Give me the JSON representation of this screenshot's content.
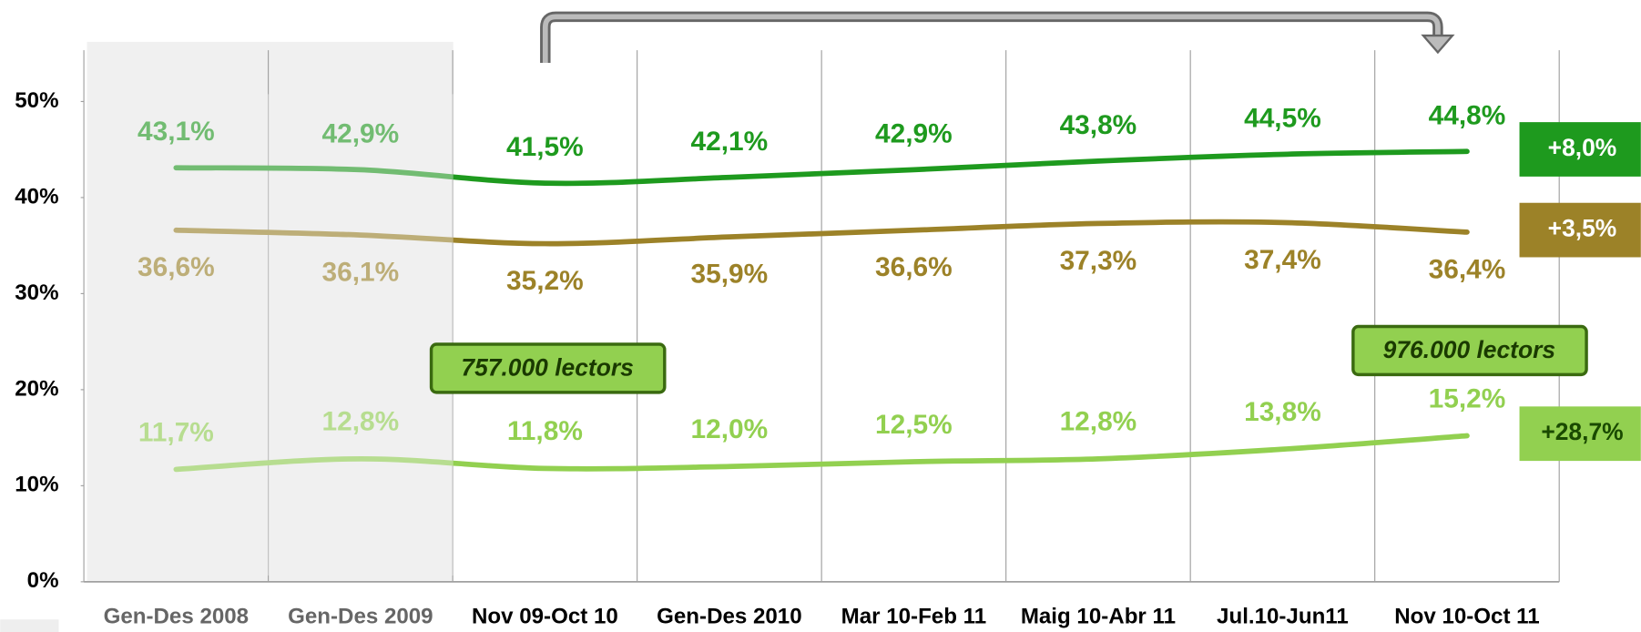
{
  "chart_data": {
    "type": "line",
    "categories": [
      "Gen-Des 2008",
      "Gen-Des 2009",
      "Nov 09-Oct 10",
      "Gen-Des 2010",
      "Mar 10-Feb 11",
      "Maig 10-Abr 11",
      "Jul.10-Jun11",
      "Nov 10-Oct 11"
    ],
    "series": [
      {
        "name": "top",
        "color": "#1e9a1e",
        "values": [
          43.1,
          42.9,
          41.5,
          42.1,
          42.9,
          43.8,
          44.5,
          44.8
        ],
        "value_labels": [
          "43,1%",
          "42,9%",
          "41,5%",
          "42,1%",
          "42,9%",
          "43,8%",
          "44,5%",
          "44,8%"
        ],
        "change": "+8,0%"
      },
      {
        "name": "middle",
        "color": "#9c8228",
        "values": [
          36.6,
          36.1,
          35.2,
          35.9,
          36.6,
          37.3,
          37.4,
          36.4
        ],
        "value_labels": [
          "36,6%",
          "36,1%",
          "35,2%",
          "35,9%",
          "36,6%",
          "37,3%",
          "37,4%",
          "36,4%"
        ],
        "change": "+3,5%"
      },
      {
        "name": "bottom",
        "color": "#92d050",
        "values": [
          11.7,
          12.8,
          11.8,
          12.0,
          12.5,
          12.8,
          13.8,
          15.2
        ],
        "value_labels": [
          "11,7%",
          "12,8%",
          "11,8%",
          "12,0%",
          "12,5%",
          "12,8%",
          "13,8%",
          "15,2%"
        ],
        "change": "+28,7%"
      }
    ],
    "ylim": [
      0,
      50
    ],
    "yticks": [
      {
        "value": 0,
        "label": "0%"
      },
      {
        "value": 10,
        "label": "10%"
      },
      {
        "value": 20,
        "label": "20%"
      },
      {
        "value": 30,
        "label": "30%"
      },
      {
        "value": 40,
        "label": "40%"
      },
      {
        "value": 50,
        "label": "50%"
      }
    ],
    "callouts": [
      "757.000 lectors",
      "976.000 lectors"
    ]
  }
}
